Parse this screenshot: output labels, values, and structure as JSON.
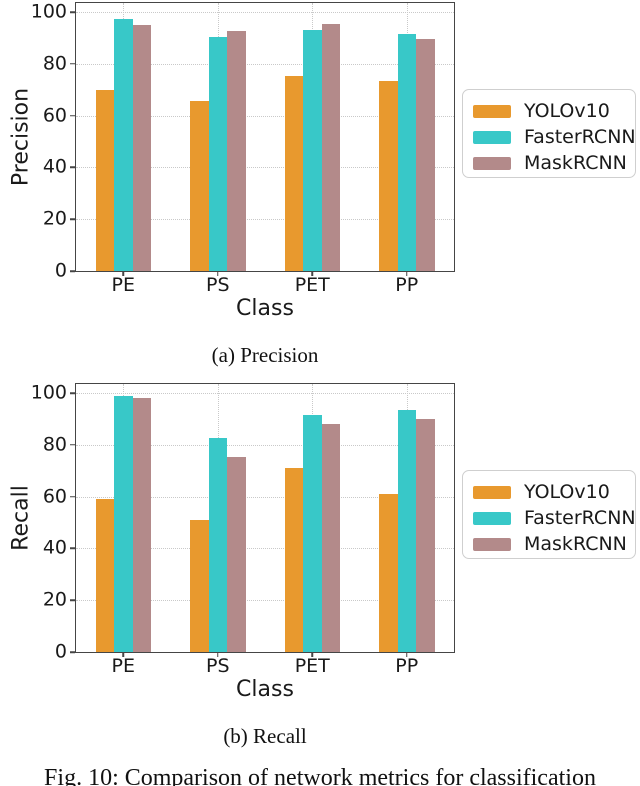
{
  "figure_caption": "Fig. 10: Comparison of network metrics for classification",
  "chart_data": [
    {
      "type": "bar",
      "caption": "(a) Precision",
      "title": "",
      "xlabel": "Class",
      "ylabel": "Precision",
      "categories": [
        "PE",
        "PS",
        "PET",
        "PP"
      ],
      "yticks": [
        0,
        20,
        40,
        60,
        80,
        100
      ],
      "ylim": [
        0,
        100
      ],
      "grid": "dotted both axes",
      "legend_position": "right of plot",
      "series": [
        {
          "name": "YOLOv10",
          "color": "#E8992E",
          "values": [
            70,
            65.5,
            75.5,
            73.5
          ]
        },
        {
          "name": "FasterRCNN",
          "color": "#38C8C8",
          "values": [
            97.5,
            90.5,
            93,
            91.5
          ]
        },
        {
          "name": "MaskRCNN",
          "color": "#B38A8A",
          "values": [
            95,
            92.5,
            95.5,
            89.5
          ]
        }
      ]
    },
    {
      "type": "bar",
      "caption": "(b) Recall",
      "title": "",
      "xlabel": "Class",
      "ylabel": "Recall",
      "categories": [
        "PE",
        "PS",
        "PET",
        "PP"
      ],
      "yticks": [
        0,
        20,
        40,
        60,
        80,
        100
      ],
      "ylim": [
        0,
        100
      ],
      "grid": "dotted both axes",
      "legend_position": "right of plot",
      "series": [
        {
          "name": "YOLOv10",
          "color": "#E8992E",
          "values": [
            59,
            51,
            71,
            61
          ]
        },
        {
          "name": "FasterRCNN",
          "color": "#38C8C8",
          "values": [
            99,
            82.5,
            91.5,
            93.5
          ]
        },
        {
          "name": "MaskRCNN",
          "color": "#B38A8A",
          "values": [
            98,
            75.5,
            88,
            90
          ]
        }
      ]
    }
  ]
}
